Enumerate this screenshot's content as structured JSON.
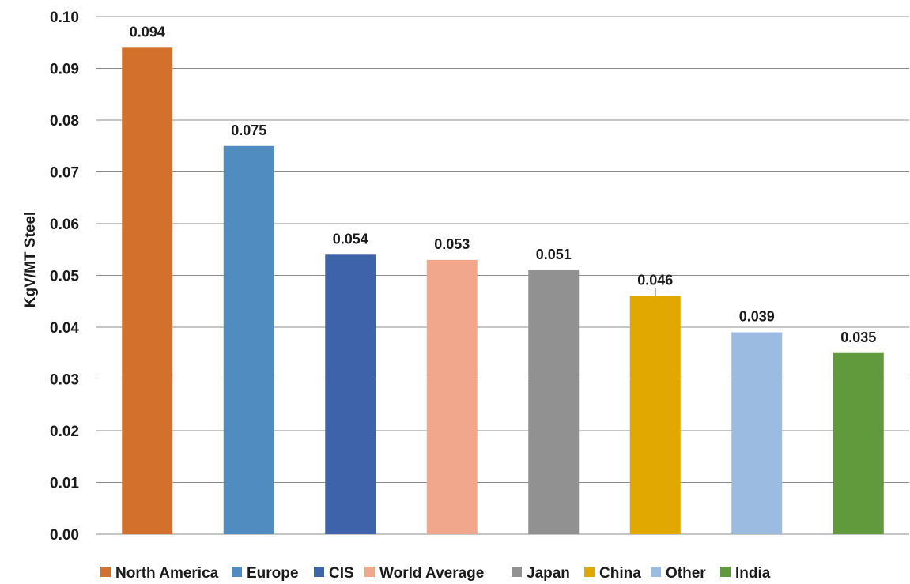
{
  "chart_data": {
    "type": "bar",
    "categories": [
      "North America",
      "Europe",
      "CIS",
      "World Average",
      "Japan",
      "China",
      "Other",
      "India"
    ],
    "values": [
      0.094,
      0.075,
      0.054,
      0.053,
      0.051,
      0.046,
      0.039,
      0.035
    ],
    "data_labels": [
      "0.094",
      "0.075",
      "0.054",
      "0.053",
      "0.051",
      "0.046",
      "0.039",
      "0.035"
    ],
    "colors": [
      "#d2702c",
      "#518cc0",
      "#3e63aa",
      "#f0a78b",
      "#919191",
      "#e0a800",
      "#9bbbe0",
      "#619a3d"
    ],
    "title": "",
    "xlabel": "",
    "ylabel": "KgV/MT Steel",
    "ylim": [
      0,
      0.1
    ],
    "yticks": [
      "0.00",
      "0.01",
      "0.02",
      "0.03",
      "0.04",
      "0.05",
      "0.06",
      "0.07",
      "0.08",
      "0.09",
      "0.10"
    ],
    "grid": true,
    "legend_position": "bottom",
    "legend": [
      "North America",
      "Europe",
      "CIS",
      "World Average",
      "Japan",
      "China",
      "Other",
      "India"
    ]
  }
}
